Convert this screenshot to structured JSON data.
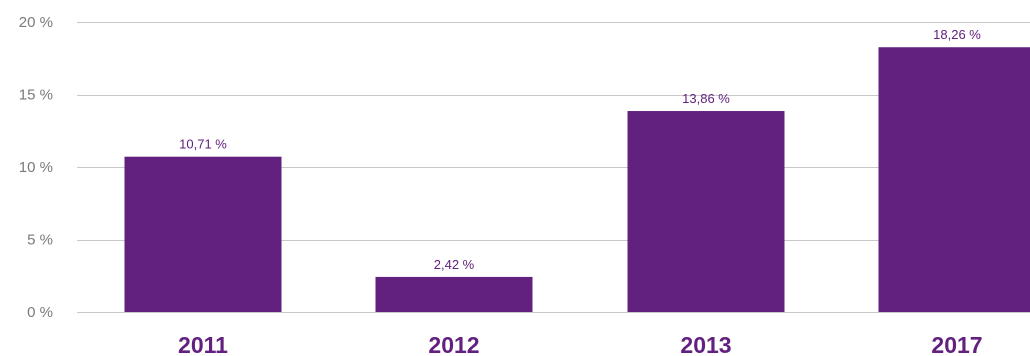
{
  "chart_data": {
    "type": "bar",
    "categories": [
      "2011",
      "2012",
      "2013",
      "2017"
    ],
    "values": [
      10.71,
      2.42,
      13.86,
      18.26
    ],
    "value_labels": [
      "10,71 %",
      "2,42 %",
      "13,86 %",
      "18,26 %"
    ],
    "y_ticks": [
      0,
      5,
      10,
      15,
      20
    ],
    "y_tick_labels": [
      "0 %",
      "5 %",
      "10 %",
      "15 %",
      "20 %"
    ],
    "ylim": [
      0,
      20
    ],
    "grid": true,
    "title": "",
    "xlabel": "",
    "ylabel": "",
    "colors": {
      "bar": "#62217f",
      "grid": "#c8c8c8",
      "tick_text": "#7a7a7a"
    }
  }
}
